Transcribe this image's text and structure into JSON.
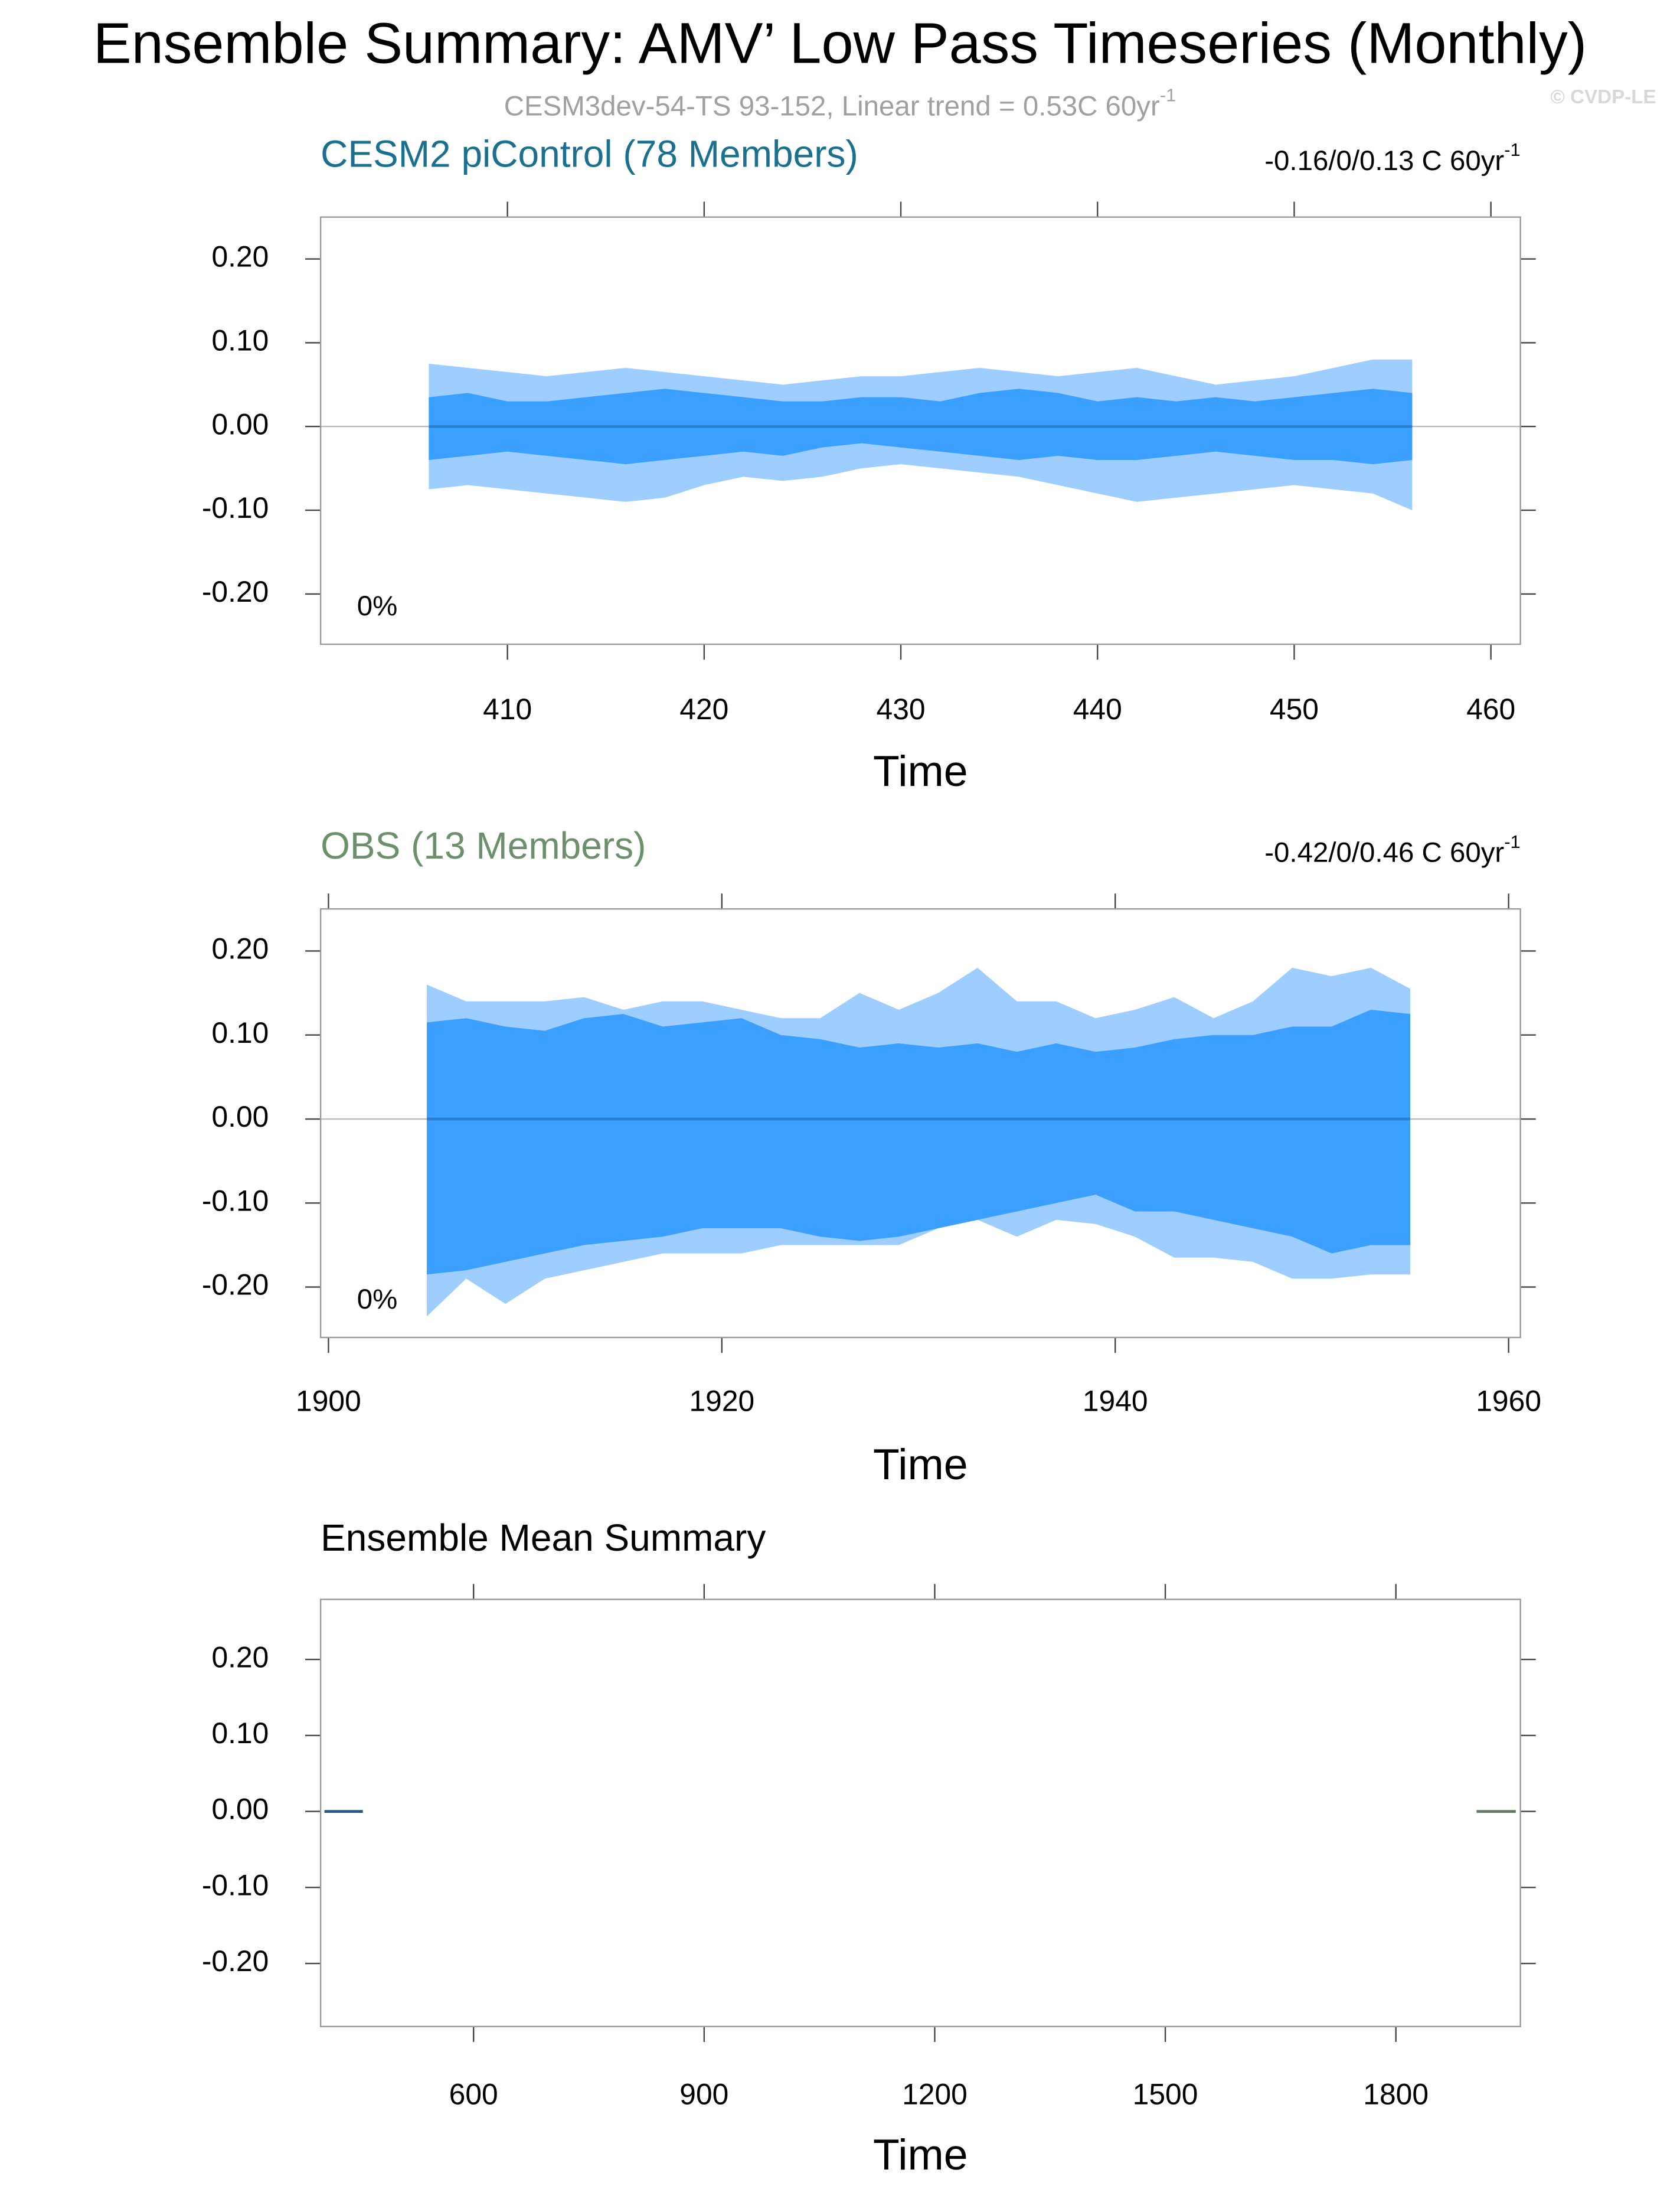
{
  "title": "Ensemble Summary: AMV’ Low Pass Timeseries (Monthly)",
  "subtitle": "CESM3dev-54-TS 93-152, Linear trend = 0.53C 60yr",
  "subtitle_sup": "-1",
  "copyright": "© CVDP-LE",
  "chart_data": [
    {
      "type": "band",
      "title": "CESM2 piControl (78 Members)",
      "title_color": "#1b6f8f",
      "trend_label": "-0.16/0/0.13 C 60yr",
      "trend_label_sup": "-1",
      "corner_label": "0%",
      "xlabel": "Time",
      "xlim": [
        400.5,
        461.5
      ],
      "xticks": [
        410,
        420,
        430,
        440,
        450,
        460
      ],
      "ylim": [
        -0.26,
        0.25
      ],
      "yticks": [
        {
          "value": 0.2,
          "label": "0.20"
        },
        {
          "value": 0.1,
          "label": "0.10"
        },
        {
          "value": 0,
          "label": "0.00"
        },
        {
          "value": -0.1,
          "label": "-0.10"
        },
        {
          "value": -0.2,
          "label": "-0.20"
        }
      ],
      "outer_color": "#9dceff",
      "inner_color": "#3a9fff",
      "mean_color": "#2b7fd0",
      "x": [
        406,
        408,
        410,
        412,
        414,
        416,
        418,
        420,
        422,
        424,
        426,
        428,
        430,
        432,
        434,
        436,
        438,
        440,
        442,
        444,
        446,
        448,
        450,
        452,
        454,
        456
      ],
      "outer_upper": [
        0.075,
        0.07,
        0.065,
        0.06,
        0.065,
        0.07,
        0.065,
        0.06,
        0.055,
        0.05,
        0.055,
        0.06,
        0.06,
        0.065,
        0.07,
        0.065,
        0.06,
        0.065,
        0.07,
        0.06,
        0.05,
        0.055,
        0.06,
        0.07,
        0.08,
        0.08
      ],
      "outer_lower": [
        -0.075,
        -0.07,
        -0.075,
        -0.08,
        -0.085,
        -0.09,
        -0.085,
        -0.07,
        -0.06,
        -0.065,
        -0.06,
        -0.05,
        -0.045,
        -0.05,
        -0.055,
        -0.06,
        -0.07,
        -0.08,
        -0.09,
        -0.085,
        -0.08,
        -0.075,
        -0.07,
        -0.075,
        -0.08,
        -0.1
      ],
      "inner_upper": [
        0.035,
        0.04,
        0.03,
        0.03,
        0.035,
        0.04,
        0.045,
        0.04,
        0.035,
        0.03,
        0.03,
        0.035,
        0.035,
        0.03,
        0.04,
        0.045,
        0.04,
        0.03,
        0.035,
        0.03,
        0.035,
        0.03,
        0.035,
        0.04,
        0.045,
        0.04
      ],
      "inner_lower": [
        -0.04,
        -0.035,
        -0.03,
        -0.035,
        -0.04,
        -0.045,
        -0.04,
        -0.035,
        -0.03,
        -0.035,
        -0.025,
        -0.02,
        -0.025,
        -0.03,
        -0.035,
        -0.04,
        -0.035,
        -0.04,
        -0.04,
        -0.035,
        -0.03,
        -0.035,
        -0.04,
        -0.04,
        -0.045,
        -0.04
      ],
      "mean": [
        0,
        0,
        0,
        0,
        0,
        0,
        0,
        0,
        0,
        0,
        0,
        0,
        0,
        0,
        0,
        0,
        0,
        0,
        0,
        0,
        0,
        0,
        0,
        0,
        0,
        0
      ]
    },
    {
      "type": "band",
      "title": "OBS (13 Members)",
      "title_color": "#6c8f6c",
      "trend_label": "-0.42/0/0.46 C 60yr",
      "trend_label_sup": "-1",
      "corner_label": "0%",
      "xlabel": "Time",
      "xlim": [
        1899.6,
        1960.6
      ],
      "xticks": [
        1900,
        1920,
        1940,
        1960
      ],
      "ylim": [
        -0.26,
        0.25
      ],
      "yticks": [
        {
          "value": 0.2,
          "label": "0.20"
        },
        {
          "value": 0.1,
          "label": "0.10"
        },
        {
          "value": 0,
          "label": "0.00"
        },
        {
          "value": -0.1,
          "label": "-0.10"
        },
        {
          "value": -0.2,
          "label": "-0.20"
        }
      ],
      "outer_color": "#9dceff",
      "inner_color": "#3a9fff",
      "mean_color": "#2b7fd0",
      "x": [
        1905,
        1907,
        1909,
        1911,
        1913,
        1915,
        1917,
        1919,
        1921,
        1923,
        1925,
        1927,
        1929,
        1931,
        1933,
        1935,
        1937,
        1939,
        1941,
        1943,
        1945,
        1947,
        1949,
        1951,
        1953,
        1955
      ],
      "outer_upper": [
        0.16,
        0.14,
        0.14,
        0.14,
        0.145,
        0.13,
        0.14,
        0.14,
        0.13,
        0.12,
        0.12,
        0.15,
        0.13,
        0.15,
        0.18,
        0.14,
        0.14,
        0.12,
        0.13,
        0.145,
        0.12,
        0.14,
        0.18,
        0.17,
        0.18,
        0.155
      ],
      "outer_lower": [
        -0.235,
        -0.19,
        -0.22,
        -0.19,
        -0.18,
        -0.17,
        -0.16,
        -0.16,
        -0.16,
        -0.15,
        -0.15,
        -0.15,
        -0.15,
        -0.13,
        -0.12,
        -0.14,
        -0.12,
        -0.125,
        -0.14,
        -0.165,
        -0.165,
        -0.17,
        -0.19,
        -0.19,
        -0.185,
        -0.185
      ],
      "inner_upper": [
        0.115,
        0.12,
        0.11,
        0.105,
        0.12,
        0.125,
        0.11,
        0.115,
        0.12,
        0.1,
        0.095,
        0.085,
        0.09,
        0.085,
        0.09,
        0.08,
        0.09,
        0.08,
        0.085,
        0.095,
        0.1,
        0.1,
        0.11,
        0.11,
        0.13,
        0.125
      ],
      "inner_lower": [
        -0.185,
        -0.18,
        -0.17,
        -0.16,
        -0.15,
        -0.145,
        -0.14,
        -0.13,
        -0.13,
        -0.13,
        -0.14,
        -0.145,
        -0.14,
        -0.13,
        -0.12,
        -0.11,
        -0.1,
        -0.09,
        -0.11,
        -0.11,
        -0.12,
        -0.13,
        -0.14,
        -0.16,
        -0.15,
        -0.15
      ],
      "mean": [
        0,
        0,
        0,
        0,
        0,
        0,
        0,
        0,
        0,
        0,
        0,
        0,
        0,
        0,
        0,
        0,
        0,
        0,
        0,
        0,
        0,
        0,
        0,
        0,
        0,
        0
      ]
    },
    {
      "type": "line",
      "title": "Ensemble Mean Summary",
      "title_color": "#000000",
      "xlabel": "Time",
      "xlim": [
        401,
        1962
      ],
      "xticks": [
        600,
        900,
        1200,
        1500,
        1800
      ],
      "ylim": [
        -0.283,
        0.279
      ],
      "yticks": [
        {
          "value": 0.2,
          "label": "0.20"
        },
        {
          "value": 0.1,
          "label": "0.10"
        },
        {
          "value": 0,
          "label": "0.00"
        },
        {
          "value": -0.1,
          "label": "-0.10"
        },
        {
          "value": -0.2,
          "label": "-0.20"
        }
      ],
      "series": [
        {
          "color": "#1f5a8c",
          "x": [
            406,
            456
          ],
          "values": [
            0,
            0
          ]
        },
        {
          "color": "#5e7e5e",
          "x": [
            1905,
            1956
          ],
          "values": [
            0,
            0
          ]
        }
      ]
    }
  ]
}
